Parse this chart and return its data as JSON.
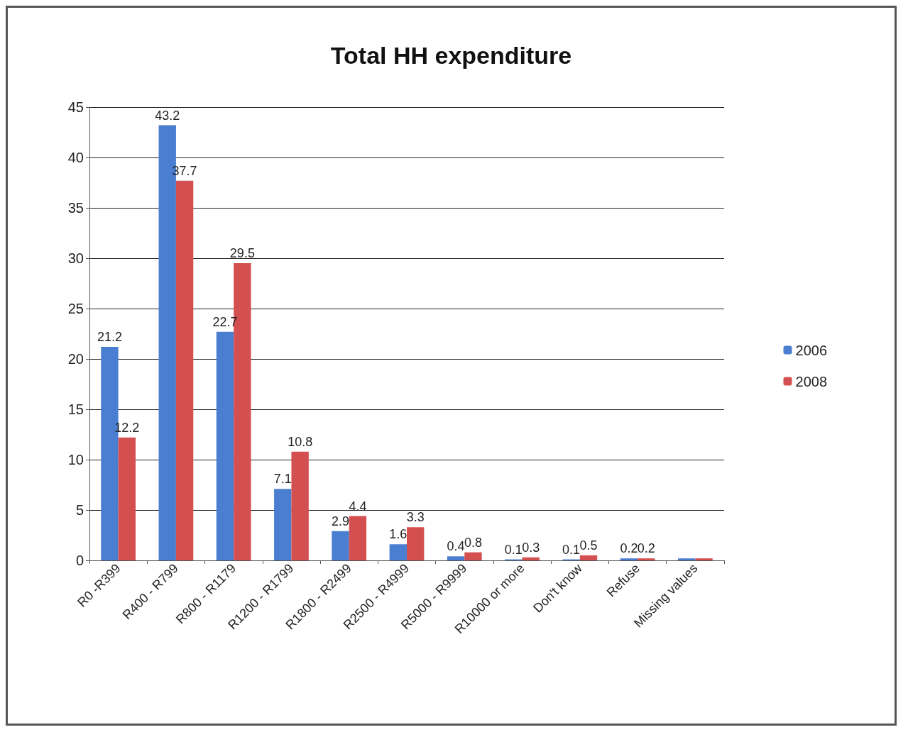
{
  "chart_data": {
    "type": "bar",
    "title": "Total HH expenditure",
    "categories": [
      "R0 -R399",
      "R400 - R799",
      "R800 - R1179",
      "R1200 - R1799",
      "R1800 - R2499",
      "R2500 - R4999",
      "R5000 - R9999",
      "R10000 or more",
      "Don't know",
      "Refuse",
      "Missing values"
    ],
    "series": [
      {
        "name": "2006",
        "color": "#4a7ed0",
        "values": [
          21.2,
          43.2,
          22.7,
          7.1,
          2.9,
          1.6,
          0.4,
          0.1,
          0.1,
          0.2,
          0.2
        ],
        "value_labels": [
          "21.2",
          "43.2",
          "22.7",
          "7.1",
          "2.9",
          "1.6",
          "0.4",
          "0.1",
          "0.1",
          "0.2",
          null
        ]
      },
      {
        "name": "2008",
        "color": "#d45050",
        "values": [
          12.2,
          37.7,
          29.5,
          10.8,
          4.4,
          3.3,
          0.8,
          0.3,
          0.5,
          0.2,
          0.2
        ],
        "value_labels": [
          "12.2",
          "37.7",
          "29.5",
          "10.8",
          "4.4",
          "3.3",
          "0.8",
          "0.3",
          "0.5",
          "0.2",
          null
        ]
      }
    ],
    "ylim": [
      0,
      45
    ],
    "yticks": [
      0,
      5,
      10,
      15,
      20,
      25,
      30,
      35,
      40,
      45
    ],
    "grid": "y",
    "legend": "right"
  }
}
